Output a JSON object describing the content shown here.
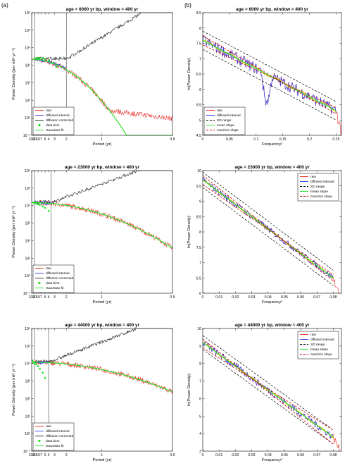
{
  "panel_labels": {
    "a": "(a)",
    "b": "(b)"
  },
  "chart_data": [
    {
      "type": "line",
      "panel": "a",
      "row": 0,
      "title": "age = 6000 yr bp, window = 400 yr",
      "xlabel": "Period (yr)",
      "ylabel": "Power Density (per mil² yr⁻¹)",
      "x_scale": "reciprocal",
      "y_scale": "log",
      "xlim": [
        100,
        0.5
      ],
      "ylim_exp": [
        -1,
        6
      ],
      "xticks": [
        "100",
        "20",
        "10",
        "7",
        "5",
        "4",
        "3",
        "2",
        "1",
        "0.5"
      ],
      "yticks": [
        "10⁻¹",
        "10⁰",
        "10¹",
        "10²",
        "10³",
        "10⁴",
        "10⁵",
        "10⁶"
      ],
      "vlines": [
        20,
        2
      ],
      "legend": [
        "raw",
        "diffused interval",
        "diffusion corrected",
        "data bins",
        "Gaussian fit"
      ],
      "level": 2200,
      "decay": 0.55,
      "raw_floor": 3,
      "corr_end": 1000000,
      "bins": [
        [
          14,
          2500
        ],
        [
          10,
          2600
        ],
        [
          8,
          2600
        ],
        [
          6,
          2500
        ],
        [
          5,
          2200
        ],
        [
          4,
          1900
        ],
        [
          3.3,
          1300
        ],
        [
          2.8,
          800
        ]
      ]
    },
    {
      "type": "line",
      "panel": "a",
      "row": 1,
      "title": "age = 23000 yr bp, window = 400 yr",
      "xlabel": "Period (yr)",
      "ylabel": "Power Density (per mil² yr⁻¹)",
      "x_scale": "reciprocal",
      "y_scale": "log",
      "xlim": [
        100,
        0.5
      ],
      "ylim_exp": [
        -1,
        6
      ],
      "xticks": [
        "100",
        "20",
        "10",
        "7",
        "5",
        "4",
        "3",
        "2",
        "1",
        "0.5"
      ],
      "yticks": [
        "10⁻¹",
        "10⁰",
        "10¹",
        "10²",
        "10³",
        "10⁴",
        "10⁵",
        "10⁶"
      ],
      "vlines": [
        20,
        3.5
      ],
      "legend": [
        "raw",
        "diffused interval",
        "diffusion corrected",
        "data bins",
        "Gaussian fit"
      ],
      "level": 15000,
      "decay": 1.05,
      "raw_floor": 1,
      "corr_end": 1000000,
      "bins": [
        [
          30,
          15000
        ],
        [
          20,
          15000
        ],
        [
          14,
          13000
        ],
        [
          10,
          12000
        ],
        [
          8,
          11000
        ],
        [
          6,
          9000
        ],
        [
          5,
          7500
        ],
        [
          4,
          5000
        ]
      ]
    },
    {
      "type": "line",
      "panel": "a",
      "row": 2,
      "title": "age = 44000 yr bp, window = 400 yr",
      "xlabel": "Period (yr)",
      "ylabel": "Power Density (per mil² yr⁻¹)",
      "x_scale": "reciprocal",
      "y_scale": "log",
      "xlim": [
        100,
        0.5
      ],
      "ylim_exp": [
        -1,
        6
      ],
      "xticks": [
        "100",
        "20",
        "10",
        "7",
        "5",
        "4",
        "3",
        "2",
        "1",
        "0.5"
      ],
      "yticks": [
        "10⁻¹",
        "10⁰",
        "10¹",
        "10²",
        "10³",
        "10⁴",
        "10⁵",
        "10⁶"
      ],
      "vlines": [
        20,
        4
      ],
      "legend": [
        "raw",
        "diffused interval",
        "diffusion corrected",
        "data bins",
        "Gaussian fit"
      ],
      "level": 12000,
      "decay": 1.3,
      "raw_floor": 0.3,
      "corr_end": 1000000,
      "bins": [
        [
          50,
          15000
        ],
        [
          30,
          12000
        ],
        [
          20,
          10000
        ],
        [
          14,
          9000
        ],
        [
          10,
          7000
        ],
        [
          8,
          5000
        ],
        [
          6,
          3000
        ],
        [
          5,
          1500
        ]
      ]
    },
    {
      "type": "line",
      "panel": "b",
      "row": 0,
      "title": "age = 6000 yr bp, window = 400 yr",
      "xlabel": "Frequency²",
      "ylabel": "ln(Power Density)",
      "xlim": [
        0,
        0.26
      ],
      "ylim": [
        4.5,
        8.5
      ],
      "xticks": [
        0,
        0.05,
        0.1,
        0.15,
        0.2,
        0.25
      ],
      "xtick_labels": [
        "0",
        "0.05",
        "0.1",
        "0.15",
        "0.2",
        "0.25"
      ],
      "yticks": [
        4.5,
        5,
        5.5,
        6,
        6.5,
        7,
        7.5,
        8,
        8.5
      ],
      "ytick_labels": [
        "4.5",
        "5",
        "5.5",
        "6",
        "6.5",
        "7",
        "7.5",
        "8",
        "8.5"
      ],
      "legend": [
        "raw",
        "diffused interval",
        "SD range",
        "mean slope",
        "max/min slope"
      ],
      "mean_line": [
        [
          0,
          7.6
        ],
        [
          0.25,
          5.3
        ]
      ],
      "sd_upper": [
        [
          0,
          7.9
        ],
        [
          0.25,
          5.6
        ]
      ],
      "sd_lower": [
        [
          0,
          7.3
        ],
        [
          0.25,
          5.0
        ]
      ],
      "max_line": [
        [
          0,
          7.75
        ],
        [
          0.25,
          5.2
        ]
      ],
      "min_line": [
        [
          0,
          7.45
        ],
        [
          0.25,
          5.4
        ]
      ],
      "noise": 0.18,
      "dip": [
        0.11,
        0.13,
        5.6
      ]
    },
    {
      "type": "line",
      "panel": "b",
      "row": 1,
      "title": "age = 23000 yr bp, window = 400 yr",
      "xlabel": "Frequency²",
      "ylabel": "ln(Power Density)",
      "xlim": [
        0,
        0.085
      ],
      "ylim": [
        6,
        10
      ],
      "xticks": [
        0,
        0.01,
        0.02,
        0.03,
        0.04,
        0.05,
        0.06,
        0.07,
        0.08
      ],
      "xtick_labels": [
        "0",
        "0.01",
        "0.02",
        "0.03",
        "0.04",
        "0.05",
        "0.06",
        "0.07",
        "0.08"
      ],
      "yticks": [
        6,
        6.5,
        7,
        7.5,
        8,
        8.5,
        9,
        9.5,
        10
      ],
      "ytick_labels": [
        "6",
        "6.5",
        "7",
        "7.5",
        "8",
        "8.5",
        "9",
        "9.5",
        "10"
      ],
      "legend": [
        "raw",
        "diffused interval",
        "SD range",
        "mean slope",
        "max/min slope"
      ],
      "mean_line": [
        [
          0,
          9.7
        ],
        [
          0.08,
          6.5
        ]
      ],
      "sd_upper": [
        [
          0,
          9.95
        ],
        [
          0.08,
          6.75
        ]
      ],
      "sd_lower": [
        [
          0,
          9.45
        ],
        [
          0.08,
          6.25
        ]
      ],
      "max_line": [
        [
          0,
          9.85
        ],
        [
          0.08,
          6.4
        ]
      ],
      "min_line": [
        [
          0,
          9.55
        ],
        [
          0.08,
          6.6
        ]
      ],
      "noise": 0.1,
      "dip": null
    },
    {
      "type": "line",
      "panel": "b",
      "row": 2,
      "title": "age = 44000 yr bp, window = 400 yr",
      "xlabel": "Frequency²",
      "ylabel": "ln(Power Density)",
      "xlim": [
        0,
        0.085
      ],
      "ylim": [
        3,
        10
      ],
      "xticks": [
        0,
        0.01,
        0.02,
        0.03,
        0.04,
        0.05,
        0.06,
        0.07,
        0.08
      ],
      "xtick_labels": [
        "0",
        "0.01",
        "0.02",
        "0.03",
        "0.04",
        "0.05",
        "0.06",
        "0.07",
        "0.08"
      ],
      "yticks": [
        3,
        4,
        5,
        6,
        7,
        8,
        9,
        10
      ],
      "ytick_labels": [
        "3",
        "4",
        "5",
        "6",
        "7",
        "8",
        "9",
        "10"
      ],
      "legend": [
        "raw",
        "diffused interval",
        "SD range",
        "mean slope",
        "max/min slope"
      ],
      "mean_line": [
        [
          0,
          9.2
        ],
        [
          0.08,
          3.8
        ]
      ],
      "sd_upper": [
        [
          0,
          9.6
        ],
        [
          0.08,
          4.2
        ]
      ],
      "sd_lower": [
        [
          0,
          8.8
        ],
        [
          0.08,
          3.4
        ]
      ],
      "max_line": [
        [
          0,
          9.4
        ],
        [
          0.08,
          3.4
        ]
      ],
      "min_line": [
        [
          0,
          8.9
        ],
        [
          0.08,
          4.2
        ]
      ],
      "noise": 0.2,
      "dip": null
    }
  ]
}
